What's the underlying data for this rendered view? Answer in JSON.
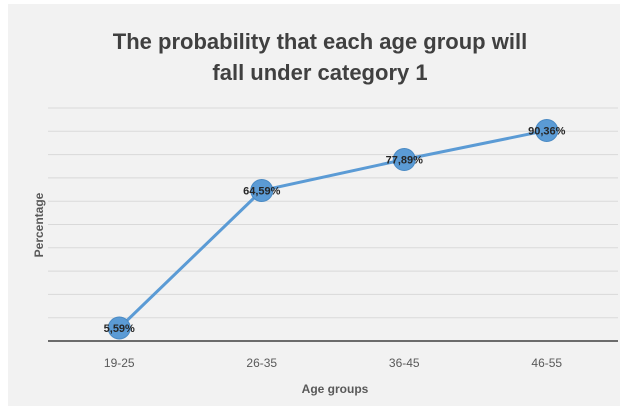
{
  "chart_data": {
    "type": "line",
    "title_lines": [
      "The probability that each age group will",
      "fall under category 1"
    ],
    "xlabel": "Age groups",
    "ylabel": "Percentage",
    "categories": [
      "19-25",
      "26-35",
      "36-45",
      "46-55"
    ],
    "values": [
      5.59,
      64.59,
      77.89,
      90.36
    ],
    "data_labels": [
      "5,59%",
      "64,59%",
      "77,89%",
      "90,36%"
    ],
    "ylim": [
      0,
      100
    ],
    "y_tick_step": 10,
    "grid": true,
    "legend": "none",
    "colors": {
      "line": "#5b9bd5",
      "marker": "#5b9bd5",
      "grid": "#d9d9d9",
      "axis": "#404040",
      "text": "#595959"
    }
  }
}
